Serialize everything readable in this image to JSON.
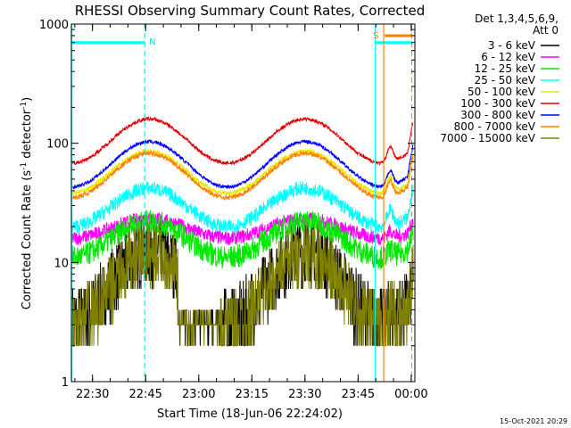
{
  "chart_data": {
    "type": "line",
    "title": "RHESSI Observing Summary Count Rates, Corrected",
    "xlabel": "Start Time (18-Jun-06 22:24:02)",
    "ylabel_main": "Corrected Count Rate (s",
    "ylabel_sup1": "-1",
    "ylabel_mid": " detector",
    "ylabel_sup2": "-1",
    "ylabel_end": ")",
    "yscale": "log",
    "ylim": [
      1,
      1000
    ],
    "xlim_minutes": [
      0,
      97
    ],
    "x_ticks": [
      {
        "label": "22:30",
        "minute": 5.97
      },
      {
        "label": "22:45",
        "minute": 20.97
      },
      {
        "label": "23:00",
        "minute": 35.97
      },
      {
        "label": "23:15",
        "minute": 50.97
      },
      {
        "label": "23:30",
        "minute": 65.97
      },
      {
        "label": "23:45",
        "minute": 80.97
      },
      {
        "label": "00:00",
        "minute": 95.97
      }
    ],
    "y_ticks": [
      {
        "label": "1",
        "value": 1
      },
      {
        "label": "10",
        "value": 10
      },
      {
        "label": "100",
        "value": 100
      },
      {
        "label": "1000",
        "value": 1000
      }
    ],
    "legend_header": [
      "Det 1,3,4,5,6,9,",
      "Att 0"
    ],
    "series": [
      {
        "name": "3 - 6 keV",
        "color": "#000000",
        "level": 3.2,
        "amp": 4.0,
        "noise": 0.3,
        "gap_fill": false
      },
      {
        "name": "6 - 12 keV",
        "color": "#ff00ff",
        "level": 16,
        "amp": 1.45,
        "noise": 0.06
      },
      {
        "name": "12 - 25 keV",
        "color": "#00e800",
        "level": 11,
        "amp": 2.0,
        "noise": 0.1
      },
      {
        "name": "25 - 50 keV",
        "color": "#00ffff",
        "level": 20,
        "amp": 2.1,
        "noise": 0.06
      },
      {
        "name": "50 - 100 keV",
        "color": "#e8e800",
        "level": 38,
        "amp": 2.25,
        "noise": 0.02
      },
      {
        "name": "100 - 300 keV",
        "color": "#e00000",
        "level": 68,
        "amp": 2.35,
        "noise": 0.015
      },
      {
        "name": "300 - 800 keV",
        "color": "#0000ff",
        "level": 43,
        "amp": 2.4,
        "noise": 0.015
      },
      {
        "name": "800 - 7000 keV",
        "color": "#ff8000",
        "level": 35,
        "amp": 2.35,
        "noise": 0.02
      },
      {
        "name": "7000 - 15000 keV",
        "color": "#808000",
        "level": 3.0,
        "amp": 4.0,
        "noise": 0.28
      }
    ],
    "markers": [
      {
        "label": "N",
        "color": "#00e0e0",
        "minute": 20.7,
        "style": "dashed"
      },
      {
        "label": "S",
        "color": "#ff8000",
        "minute": 88.2,
        "style": "solid"
      }
    ],
    "flag_bars": [
      {
        "color": "#00ffff",
        "value": 700,
        "from_minute": 0,
        "to_minute": 20.7
      },
      {
        "color": "#00ffff",
        "value": 700,
        "from_minute": 85.8,
        "to_minute": 96.3
      },
      {
        "color": "#ff8000",
        "value": 800,
        "from_minute": 88.5,
        "to_minute": 96.0
      }
    ],
    "vertical_lines": [
      {
        "color": "#00ffff",
        "minute": 0.1,
        "style": "solid"
      },
      {
        "color": "#00ffff",
        "minute": 85.8,
        "style": "solid"
      },
      {
        "color": "#ff8000",
        "minute": 88.2,
        "style": "solid"
      },
      {
        "color": "#ff8000",
        "minute": 96.1,
        "style": "dashed"
      }
    ],
    "grid": false,
    "legend_position": "right",
    "footer_date": "15-Oct-2021 20:29"
  }
}
